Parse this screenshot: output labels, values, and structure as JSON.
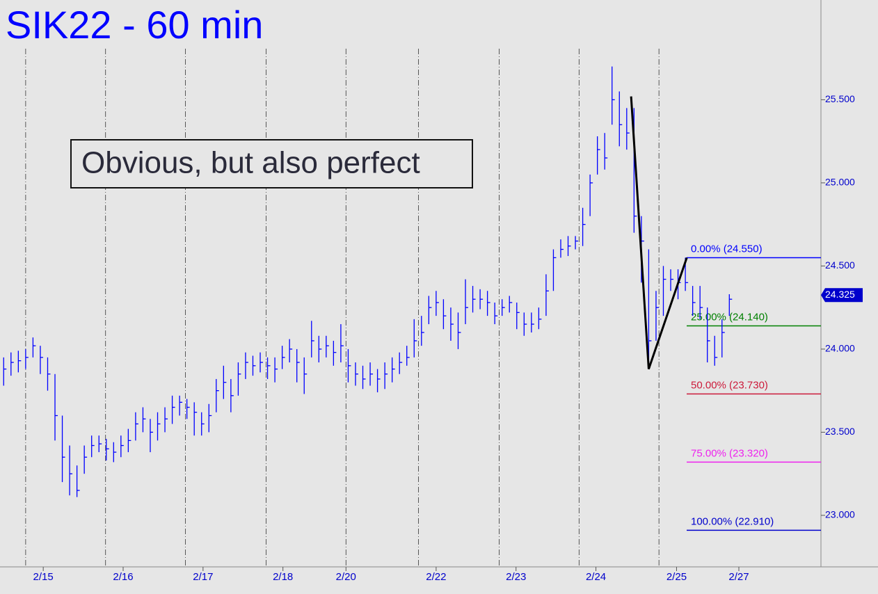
{
  "chart_data": {
    "type": "ohlc",
    "title": "SIK22 - 60 min",
    "annotation": "Obvious, but also perfect",
    "color": "#0000ff",
    "high": [
      23.95,
      23.98,
      23.99,
      24.0,
      24.07,
      24.02,
      23.95,
      23.85,
      23.6,
      23.42,
      23.3,
      23.42,
      23.48,
      23.48,
      23.46,
      23.44,
      23.48,
      23.52,
      23.62,
      23.65,
      23.58,
      23.62,
      23.65,
      23.72,
      23.72,
      23.7,
      23.68,
      23.62,
      23.67,
      23.82,
      23.9,
      23.82,
      23.92,
      23.98,
      23.96,
      23.98,
      23.95,
      23.95,
      24.02,
      24.06,
      24.0,
      23.95,
      24.17,
      24.08,
      24.08,
      24.05,
      24.15,
      24.0,
      23.92,
      23.9,
      23.92,
      23.88,
      23.92,
      23.95,
      23.98,
      24.02,
      24.18,
      24.2,
      24.32,
      24.35,
      24.3,
      24.25,
      24.22,
      24.42,
      24.38,
      24.36,
      24.35,
      24.28,
      24.3,
      24.32,
      24.28,
      24.22,
      24.22,
      24.25,
      24.45,
      24.6,
      24.66,
      24.68,
      24.68,
      24.85,
      25.05,
      25.28,
      25.3,
      25.7,
      25.55,
      25.45,
      25.45,
      24.8,
      24.6,
      24.35,
      24.5,
      24.48,
      24.48,
      24.55,
      24.38,
      24.38,
      24.25,
      24.08,
      24.18,
      24.33
    ],
    "low": [
      23.78,
      23.84,
      23.86,
      23.88,
      23.95,
      23.85,
      23.75,
      23.45,
      23.2,
      23.12,
      23.11,
      23.25,
      23.35,
      23.38,
      23.33,
      23.32,
      23.35,
      23.38,
      23.45,
      23.5,
      23.38,
      23.45,
      23.5,
      23.55,
      23.6,
      23.58,
      23.48,
      23.48,
      23.5,
      23.62,
      23.7,
      23.62,
      23.72,
      23.82,
      23.84,
      23.86,
      23.82,
      23.8,
      23.88,
      23.92,
      23.8,
      23.73,
      23.95,
      23.92,
      23.95,
      23.9,
      23.92,
      23.8,
      23.78,
      23.76,
      23.78,
      23.74,
      23.76,
      23.8,
      23.85,
      23.9,
      23.95,
      24.02,
      24.15,
      24.2,
      24.12,
      24.05,
      24.0,
      24.15,
      24.22,
      24.24,
      24.2,
      24.15,
      24.2,
      24.22,
      24.12,
      24.08,
      24.1,
      24.12,
      24.2,
      24.35,
      24.55,
      24.56,
      24.6,
      24.62,
      24.8,
      25.05,
      25.08,
      25.35,
      25.22,
      25.2,
      24.7,
      24.4,
      23.88,
      24.05,
      24.2,
      24.35,
      24.3,
      24.35,
      24.2,
      24.18,
      23.92,
      23.9,
      23.95,
      24.2
    ],
    "close": [
      23.88,
      23.92,
      23.93,
      23.95,
      24.02,
      23.95,
      23.85,
      23.6,
      23.35,
      23.25,
      23.15,
      23.35,
      23.42,
      23.43,
      23.4,
      23.38,
      23.42,
      23.45,
      23.55,
      23.58,
      23.5,
      23.55,
      23.58,
      23.65,
      23.68,
      23.65,
      23.62,
      23.55,
      23.6,
      23.75,
      23.8,
      23.72,
      23.85,
      23.92,
      23.9,
      23.92,
      23.9,
      23.88,
      23.95,
      24.0,
      23.92,
      23.85,
      24.05,
      24.0,
      24.02,
      23.98,
      24.02,
      23.9,
      23.85,
      23.82,
      23.85,
      23.82,
      23.85,
      23.88,
      23.92,
      23.95,
      24.05,
      24.1,
      24.25,
      24.28,
      24.2,
      24.15,
      24.1,
      24.25,
      24.3,
      24.3,
      24.28,
      24.2,
      24.25,
      24.28,
      24.22,
      24.15,
      24.15,
      24.18,
      24.35,
      24.55,
      24.6,
      24.62,
      24.65,
      24.75,
      25.0,
      25.2,
      25.15,
      25.5,
      25.35,
      25.3,
      24.8,
      24.65,
      24.05,
      24.25,
      24.42,
      24.42,
      24.4,
      24.4,
      24.28,
      24.25,
      24.05,
      23.95,
      24.1,
      24.3
    ],
    "xlim": [
      0,
      112
    ],
    "xticks": [
      {
        "value": 5.9,
        "label": "2/15"
      },
      {
        "value": 16.8,
        "label": "2/16"
      },
      {
        "value": 27.7,
        "label": "2/17"
      },
      {
        "value": 38.6,
        "label": "2/18"
      },
      {
        "value": 47.2,
        "label": "2/20"
      },
      {
        "value": 59.5,
        "label": "2/22"
      },
      {
        "value": 70.4,
        "label": "2/23"
      },
      {
        "value": 81.3,
        "label": "2/24"
      },
      {
        "value": 92.3,
        "label": "2/25"
      },
      {
        "value": 100.8,
        "label": "2/27"
      }
    ],
    "session_breaks": [
      3.5,
      14.4,
      25.3,
      36.3,
      47.2,
      57.1,
      68.1,
      79,
      89.9
    ],
    "ylim": [
      22.69,
      26.1
    ],
    "yticks": [
      {
        "value": 23,
        "label": "23.000"
      },
      {
        "value": 23.5,
        "label": "23.500"
      },
      {
        "value": 24,
        "label": "24.000"
      },
      {
        "value": 24.5,
        "label": "24.500"
      },
      {
        "value": 25,
        "label": "25.000"
      },
      {
        "value": 25.5,
        "label": "25.500"
      }
    ],
    "last_price": {
      "value": 24.325,
      "label": "24.325"
    },
    "levels": [
      {
        "value": 24.55,
        "label": "0.00% (24.550)",
        "color": "#0000ff"
      },
      {
        "value": 24.14,
        "label": "25.00% (24.140)",
        "color": "#008000"
      },
      {
        "value": 23.73,
        "label": "50.00% (23.730)",
        "color": "#cc1a3a"
      },
      {
        "value": 23.32,
        "label": "75.00% (23.320)",
        "color": "#ee22ee"
      },
      {
        "value": 22.91,
        "label": "100.00% (22.910)",
        "color": "#0000cc"
      }
    ],
    "pattern": {
      "x": [
        86.1,
        88.5,
        93.7
      ],
      "y": [
        25.52,
        23.88,
        24.55
      ],
      "color": "#000000"
    }
  }
}
